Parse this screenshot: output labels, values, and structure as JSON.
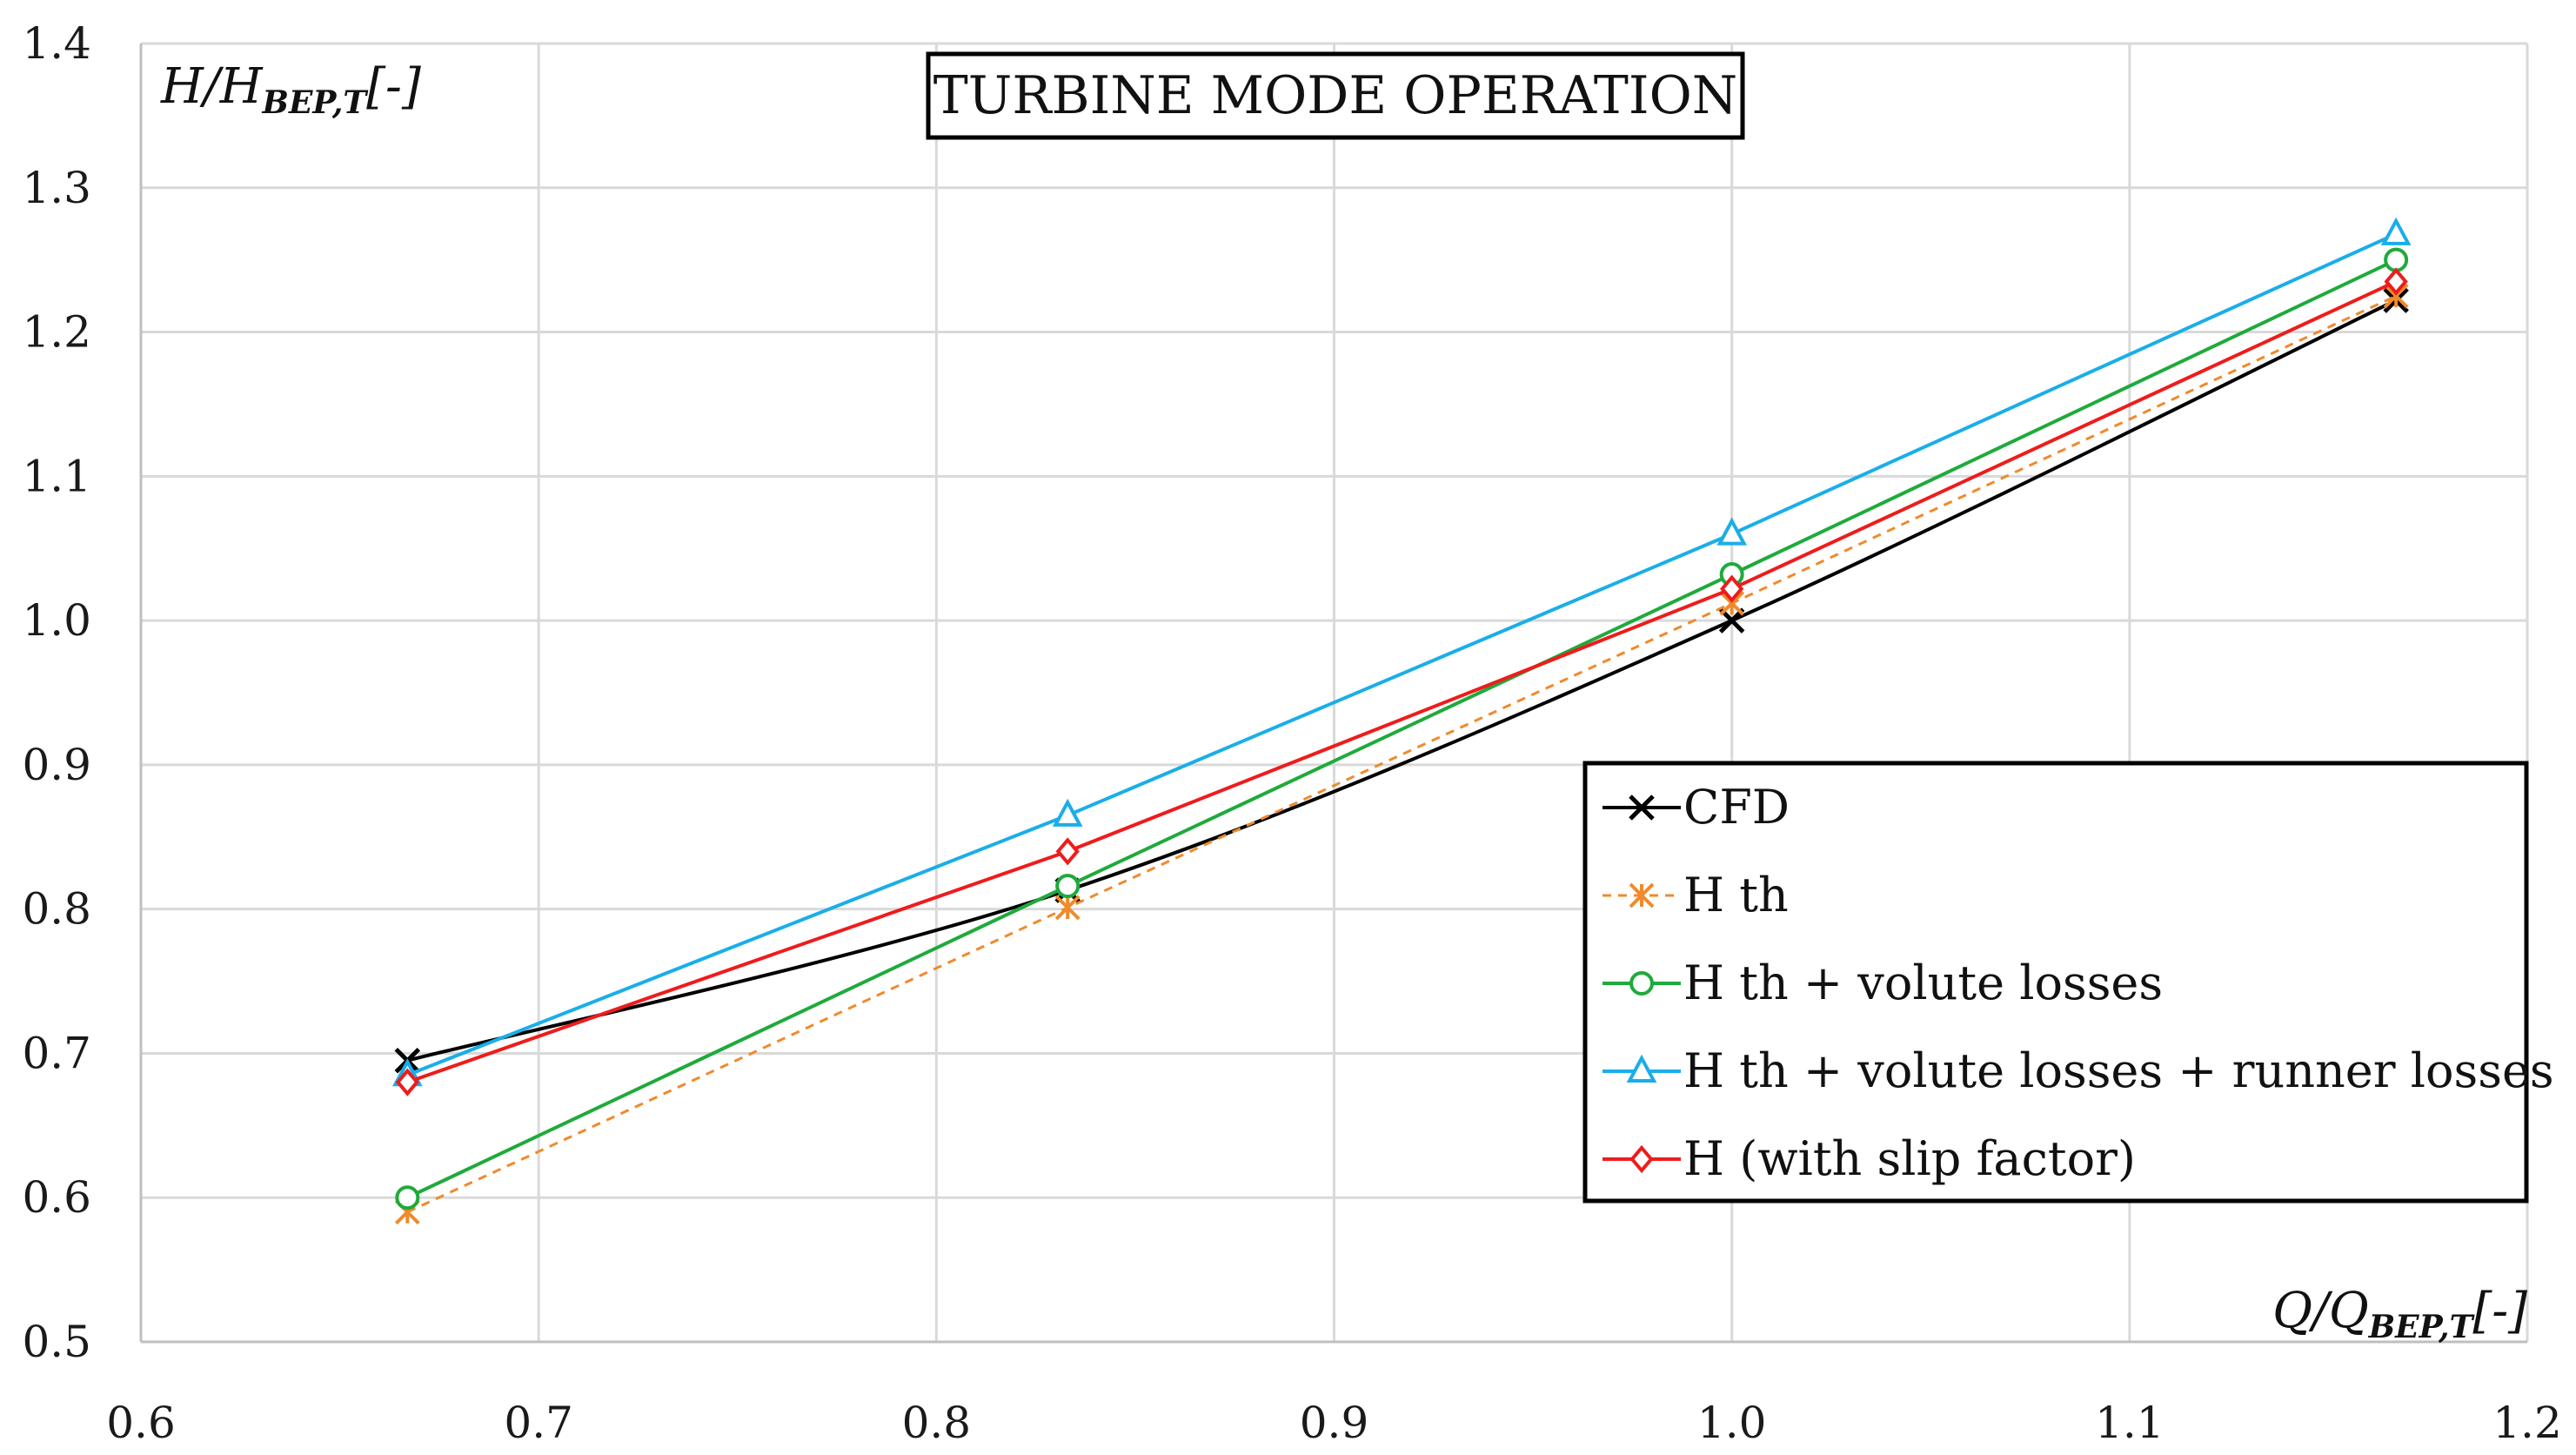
{
  "chart_data": {
    "type": "line",
    "title": "TURBINE MODE OPERATION",
    "xlabel": {
      "main": "Q/Q",
      "sub": "BEP,T",
      "unit": "[-]"
    },
    "ylabel": {
      "main": "H/H",
      "sub": "BEP,T",
      "unit": "[-]"
    },
    "xlim": [
      0.6,
      1.2
    ],
    "ylim": [
      0.5,
      1.4
    ],
    "xticks": [
      "0.6",
      "0.7",
      "0.8",
      "0.9",
      "1.0",
      "1.1",
      "1.2"
    ],
    "yticks": [
      "0.5",
      "0.6",
      "0.7",
      "0.8",
      "0.9",
      "1.0",
      "1.1",
      "1.2",
      "1.3",
      "1.4"
    ],
    "xtick_values": [
      0.6,
      0.7,
      0.8,
      0.9,
      1.0,
      1.1,
      1.2
    ],
    "ytick_values": [
      0.5,
      0.6,
      0.7,
      0.8,
      0.9,
      1.0,
      1.1,
      1.2,
      1.3,
      1.4
    ],
    "grid": true,
    "legend_position": "lower-right",
    "x": [
      0.667,
      0.833,
      1.0,
      1.167
    ],
    "series": [
      {
        "name": "CFD",
        "color": "#000000",
        "marker": "x",
        "dash": "",
        "smooth": true,
        "values": [
          0.695,
          0.813,
          1.0,
          1.222
        ]
      },
      {
        "name": "H th",
        "color": "#f08a2c",
        "marker": "asterisk",
        "dash": "10,8",
        "smooth": false,
        "values": [
          0.59,
          0.801,
          1.012,
          1.225
        ]
      },
      {
        "name": "H th + volute losses",
        "color": "#1faa3c",
        "marker": "circle",
        "dash": "",
        "smooth": false,
        "values": [
          0.6,
          0.816,
          1.032,
          1.25
        ]
      },
      {
        "name": "H th + volute losses + runner losses",
        "color": "#1aaee8",
        "marker": "triangle",
        "dash": "",
        "smooth": false,
        "values": [
          0.685,
          0.865,
          1.06,
          1.268
        ]
      },
      {
        "name": "H (with slip factor)",
        "color": "#ee1c1c",
        "marker": "diamond",
        "dash": "",
        "smooth": false,
        "values": [
          0.68,
          0.84,
          1.022,
          1.235
        ]
      }
    ]
  }
}
